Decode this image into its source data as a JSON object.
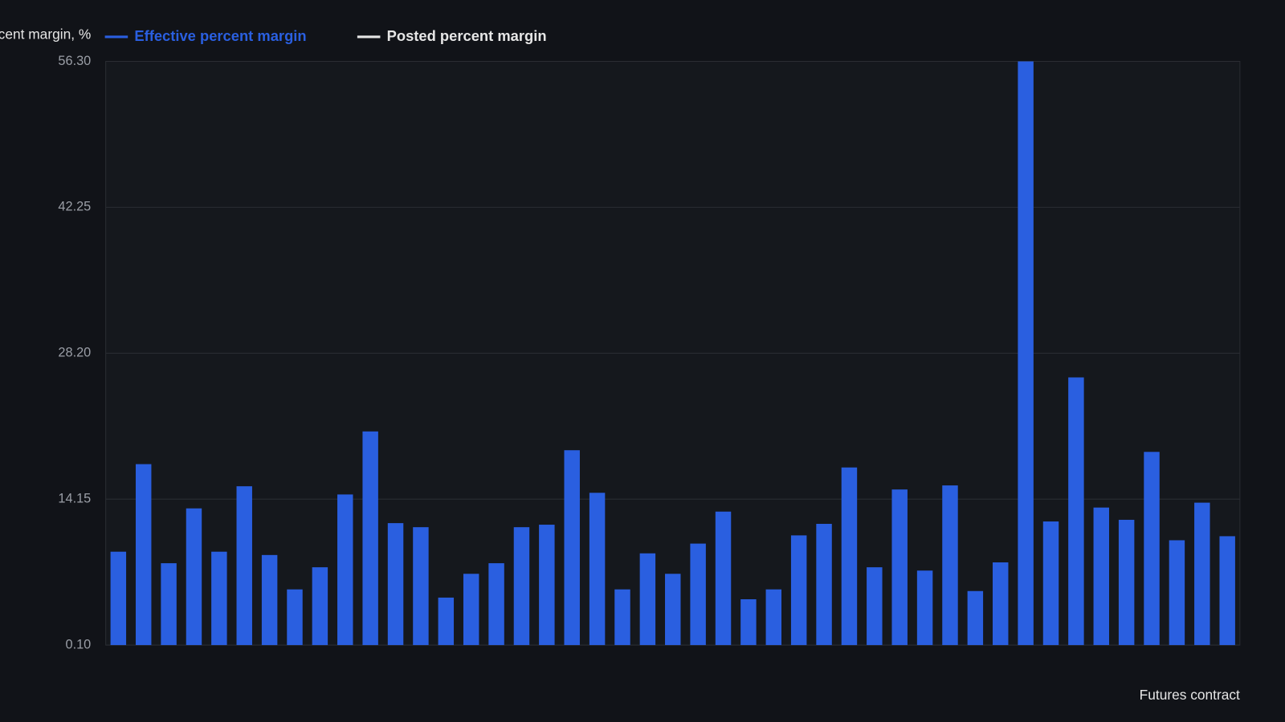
{
  "chart_data": {
    "type": "bar",
    "y_label": "Percent margin, %",
    "x_label": "Futures contract",
    "categories": [
      null,
      null,
      null,
      null,
      null,
      null,
      null,
      null,
      null,
      null,
      null,
      null,
      null,
      null,
      null,
      null,
      null,
      null,
      null,
      null,
      null,
      null,
      null,
      null,
      null,
      null,
      null,
      null,
      null,
      null,
      null,
      null,
      null,
      null,
      null,
      null,
      null,
      null,
      null,
      null,
      null,
      null,
      null,
      null,
      null
    ],
    "series": [
      {
        "name": "Effective percent margin",
        "color": "#2a5fe0",
        "values": [
          9.09,
          17.52,
          7.98,
          13.26,
          9.09,
          15.39,
          8.77,
          5.46,
          7.59,
          14.6,
          20.67,
          11.84,
          11.45,
          4.67,
          6.96,
          7.98,
          11.45,
          11.69,
          18.86,
          14.76,
          5.46,
          8.93,
          6.96,
          9.87,
          12.95,
          4.51,
          5.46,
          10.66,
          11.77,
          17.2,
          7.59,
          15.08,
          7.27,
          15.47,
          5.3,
          8.06,
          56.3,
          12.0,
          25.87,
          13.34,
          12.16,
          18.7,
          10.19,
          13.81,
          10.58
        ]
      },
      {
        "name": "Posted percent margin",
        "color": "#e6e6e6",
        "values": [
          null,
          null,
          null,
          null,
          null,
          null,
          null,
          null,
          null,
          null,
          null,
          null,
          null,
          null,
          null,
          null,
          null,
          null,
          null,
          null,
          null,
          null,
          null,
          null,
          null,
          null,
          null,
          null,
          null,
          null,
          null,
          null,
          null,
          null,
          null,
          null,
          null,
          null,
          null,
          null,
          null,
          null,
          null,
          null,
          null
        ]
      }
    ],
    "ylim": [
      0.1,
      56.3
    ],
    "yticks": [
      {
        "value": 0.1,
        "label": "0.10"
      },
      14.15,
      {
        "value": 28.2,
        "label": "28.20"
      },
      42.25,
      {
        "value": 56.3,
        "label": "56.30"
      }
    ],
    "grid": true
  }
}
